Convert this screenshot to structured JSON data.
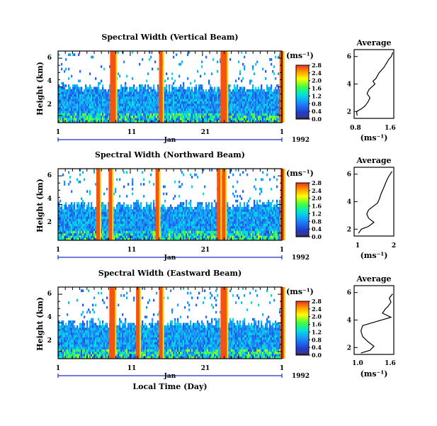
{
  "figure": {
    "xlabel": "Local Time (Day)",
    "month_label": "Jan",
    "year_label": "1992"
  },
  "chart_data": [
    {
      "type": "heatmap",
      "title": "Spectral Width (Vertical Beam)",
      "ylabel": "Height (km)",
      "x_ticks": [
        "1",
        "11",
        "21",
        "1"
      ],
      "y_ticks": [
        "2",
        "4",
        "6"
      ],
      "ylim": [
        1.5,
        6.5
      ],
      "colorbar": {
        "label": "(ms⁻¹)",
        "ticks": [
          "2.8",
          "2.4",
          "2.0",
          "1.6",
          "1.2",
          "0.8",
          "0.4",
          "0.0"
        ],
        "range": [
          0.0,
          2.8
        ]
      },
      "red_bands_day": [
        8.2,
        8.5,
        15.0,
        23.5,
        23.9,
        31.7
      ],
      "profile": {
        "title": "Average",
        "xlabel": "(ms⁻¹)",
        "x_ticks": [
          "0.8",
          "1.6"
        ],
        "xlim": [
          0.8,
          1.6
        ],
        "points": [
          [
            0.86,
            1.7
          ],
          [
            0.85,
            2.0
          ],
          [
            0.95,
            2.2
          ],
          [
            1.02,
            2.4
          ],
          [
            1.08,
            2.7
          ],
          [
            1.12,
            3.0
          ],
          [
            1.06,
            3.3
          ],
          [
            1.1,
            3.6
          ],
          [
            1.16,
            3.8
          ],
          [
            1.22,
            4.0
          ],
          [
            1.18,
            4.2
          ],
          [
            1.24,
            4.4
          ],
          [
            1.3,
            4.8
          ],
          [
            1.4,
            5.2
          ],
          [
            1.45,
            5.5
          ],
          [
            1.5,
            5.8
          ],
          [
            1.55,
            6.0
          ],
          [
            1.58,
            6.3
          ]
        ]
      }
    },
    {
      "type": "heatmap",
      "title": "Spectral Width (Northward Beam)",
      "ylabel": "Height (km)",
      "x_ticks": [
        "1",
        "11",
        "21",
        "1"
      ],
      "y_ticks": [
        "2",
        "4",
        "6"
      ],
      "ylim": [
        1.5,
        6.5
      ],
      "colorbar": {
        "label": "(ms⁻¹)",
        "ticks": [
          "2.8",
          "2.4",
          "2.0",
          "1.6",
          "1.2",
          "0.8",
          "0.4",
          "0.0"
        ],
        "range": [
          0.0,
          2.8
        ]
      },
      "red_bands_day": [
        6.3,
        8.0,
        14.5,
        23.0,
        23.7,
        31.8
      ],
      "profile": {
        "title": "Average",
        "xlabel": "(ms⁻¹)",
        "x_ticks": [
          "1",
          "2"
        ],
        "xlim": [
          0.9,
          2.0
        ],
        "points": [
          [
            1.02,
            1.7
          ],
          [
            1.1,
            2.0
          ],
          [
            1.3,
            2.2
          ],
          [
            1.45,
            2.5
          ],
          [
            1.3,
            2.8
          ],
          [
            1.25,
            3.1
          ],
          [
            1.3,
            3.4
          ],
          [
            1.45,
            3.7
          ],
          [
            1.55,
            3.9
          ],
          [
            1.6,
            4.2
          ],
          [
            1.65,
            4.6
          ],
          [
            1.72,
            5.0
          ],
          [
            1.78,
            5.4
          ],
          [
            1.85,
            5.8
          ],
          [
            1.95,
            6.2
          ]
        ]
      }
    },
    {
      "type": "heatmap",
      "title": "Spectral Width (Eastward Beam)",
      "ylabel": "Height (km)",
      "x_ticks": [
        "1",
        "11",
        "21",
        "1"
      ],
      "y_ticks": [
        "2",
        "4",
        "6"
      ],
      "ylim": [
        1.5,
        6.5
      ],
      "colorbar": {
        "label": "(ms⁻¹)",
        "ticks": [
          "2.8",
          "2.4",
          "2.0",
          "1.6",
          "1.2",
          "0.8",
          "0.4",
          "0.0"
        ],
        "range": [
          0.0,
          2.8
        ]
      },
      "red_bands_day": [
        8.1,
        8.4,
        11.8,
        15.0,
        23.5,
        23.9,
        31.8
      ],
      "profile": {
        "title": "Average",
        "xlabel": "(ms⁻¹)",
        "x_ticks": [
          "1.0",
          "1.6"
        ],
        "xlim": [
          0.9,
          1.6
        ],
        "points": [
          [
            1.02,
            1.6
          ],
          [
            1.18,
            1.8
          ],
          [
            1.25,
            2.1
          ],
          [
            1.15,
            2.4
          ],
          [
            1.05,
            2.8
          ],
          [
            1.02,
            3.2
          ],
          [
            1.05,
            3.6
          ],
          [
            1.3,
            3.9
          ],
          [
            1.55,
            4.2
          ],
          [
            1.4,
            4.5
          ],
          [
            1.45,
            4.8
          ],
          [
            1.5,
            5.0
          ],
          [
            1.55,
            5.3
          ],
          [
            1.52,
            5.6
          ],
          [
            1.58,
            5.9
          ]
        ]
      }
    }
  ]
}
